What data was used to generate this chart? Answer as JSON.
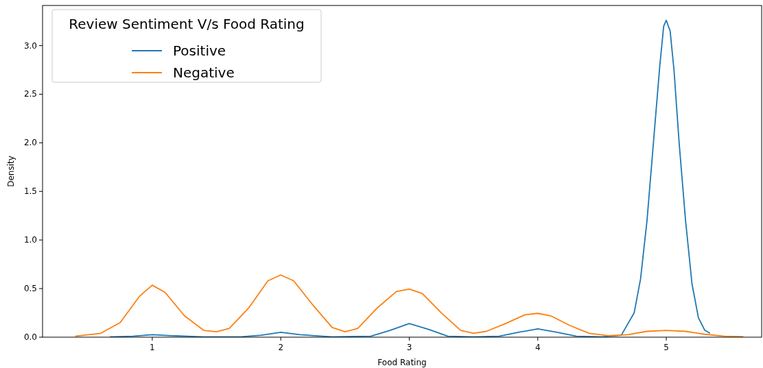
{
  "chart_data": {
    "type": "line",
    "xlabel": "Food Rating",
    "ylabel": "Density",
    "legend_title": "Review Sentiment V/s Food Rating",
    "legend": "top left",
    "grid": false,
    "marker": "none",
    "line_style": "solid",
    "xlim": [
      0.146,
      5.742
    ],
    "xticks": [
      1,
      2,
      3,
      4,
      5
    ],
    "ylim": [
      0,
      3.413
    ],
    "yticks": [
      {
        "value": 0,
        "label": "0.0"
      },
      {
        "value": 0.5,
        "label": "0.5"
      },
      {
        "value": 1,
        "label": "1.0"
      },
      {
        "value": 1.5,
        "label": "1.5"
      },
      {
        "value": 2,
        "label": "2.0"
      },
      {
        "value": 2.5,
        "label": "2.5"
      },
      {
        "value": 3,
        "label": "3.0"
      }
    ],
    "series": [
      {
        "name": "Positive",
        "color": "#1f77b4",
        "x": [
          0.67,
          0.85,
          1.0,
          1.15,
          1.4,
          1.7,
          1.85,
          2.0,
          2.15,
          2.4,
          2.7,
          2.85,
          3.0,
          3.15,
          3.3,
          3.5,
          3.7,
          3.85,
          4.0,
          4.15,
          4.3,
          4.5,
          4.65,
          4.75,
          4.8,
          4.85,
          4.9,
          4.95,
          4.98,
          5.0,
          5.03,
          5.06,
          5.1,
          5.15,
          5.2,
          5.25,
          5.3,
          5.34
        ],
        "values": [
          0.003,
          0.01,
          0.025,
          0.015,
          0.003,
          0.005,
          0.02,
          0.05,
          0.025,
          0.003,
          0.01,
          0.07,
          0.14,
          0.08,
          0.01,
          0.002,
          0.01,
          0.05,
          0.085,
          0.05,
          0.01,
          0.003,
          0.02,
          0.25,
          0.6,
          1.2,
          2.0,
          2.8,
          3.2,
          3.26,
          3.15,
          2.75,
          2.0,
          1.2,
          0.55,
          0.2,
          0.07,
          0.04
        ]
      },
      {
        "name": "Negative",
        "color": "#ff7f0e",
        "x": [
          0.4,
          0.6,
          0.75,
          0.9,
          1.0,
          1.1,
          1.25,
          1.4,
          1.5,
          1.6,
          1.75,
          1.9,
          2.0,
          2.1,
          2.25,
          2.4,
          2.5,
          2.6,
          2.75,
          2.9,
          3.0,
          3.1,
          3.25,
          3.4,
          3.5,
          3.6,
          3.75,
          3.9,
          4.0,
          4.1,
          4.25,
          4.4,
          4.55,
          4.7,
          4.85,
          5.0,
          5.15,
          5.3,
          5.45,
          5.6
        ],
        "values": [
          0.01,
          0.04,
          0.15,
          0.42,
          0.535,
          0.46,
          0.22,
          0.07,
          0.055,
          0.09,
          0.3,
          0.58,
          0.64,
          0.58,
          0.33,
          0.1,
          0.055,
          0.09,
          0.3,
          0.47,
          0.495,
          0.45,
          0.25,
          0.07,
          0.04,
          0.06,
          0.14,
          0.23,
          0.245,
          0.22,
          0.12,
          0.04,
          0.015,
          0.025,
          0.06,
          0.07,
          0.06,
          0.03,
          0.01,
          0.005
        ]
      }
    ]
  }
}
